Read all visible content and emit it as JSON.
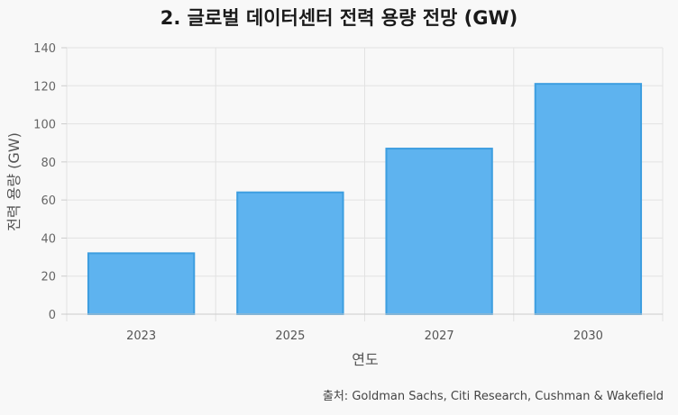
{
  "chart_data": {
    "type": "bar",
    "title": "2. 글로벌 데이터센터 전력 용량 전망 (GW)",
    "xlabel": "연도",
    "ylabel": "전력 용량 (GW)",
    "categories": [
      "2023",
      "2025",
      "2027",
      "2030"
    ],
    "values": [
      32,
      64,
      87,
      121
    ],
    "ylim": [
      0,
      140
    ],
    "yticks": [
      0,
      20,
      40,
      60,
      80,
      100,
      120,
      140
    ],
    "grid": true,
    "bar_fill": "#5eb3ef",
    "bar_stroke": "#3d9ee0",
    "grid_color": "#e2e2e2"
  },
  "source": "출처: Goldman Sachs, Citi Research, Cushman & Wakefield"
}
